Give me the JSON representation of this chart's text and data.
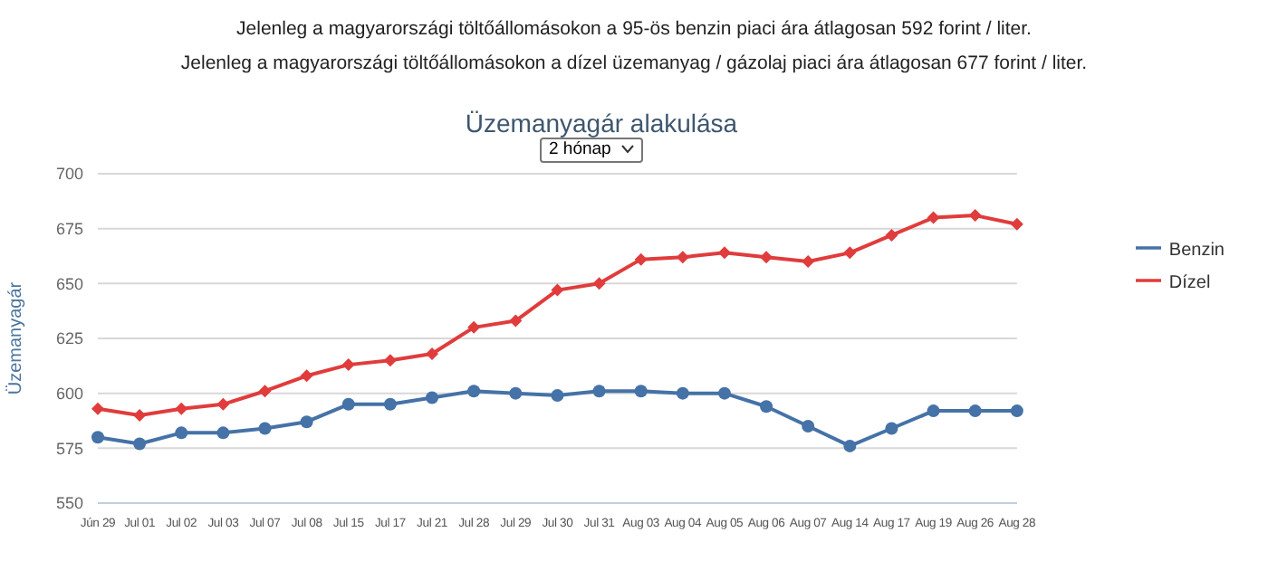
{
  "chart_data": {
    "type": "line",
    "title": "Üzemanyagár alakulása",
    "subtitle": "2 hónap",
    "ylabel": "Üzemanyagár",
    "annotations": [
      "Jelenleg a magyarországi töltőállomásokon a 95-ös benzin piaci ára átlagosan 592 forint / liter.",
      "Jelenleg a magyarországi töltőállomásokon a dízel üzemanyag / gázolaj piaci ára átlagosan 677 forint / liter."
    ],
    "categories": [
      "Jún 29",
      "Jul 01",
      "Jul 02",
      "Jul 03",
      "Jul 07",
      "Jul 08",
      "Jul 15",
      "Jul 17",
      "Jul 21",
      "Jul 28",
      "Jul 29",
      "Jul 30",
      "Jul 31",
      "Aug 03",
      "Aug 04",
      "Aug 05",
      "Aug 06",
      "Aug 07",
      "Aug 14",
      "Aug 17",
      "Aug 19",
      "Aug 26",
      "Aug 28"
    ],
    "series": [
      {
        "name": "Benzin",
        "color": "#4572a7",
        "marker": "circle",
        "values": [
          580,
          577,
          582,
          582,
          584,
          587,
          595,
          595,
          598,
          601,
          600,
          599,
          601,
          601,
          600,
          600,
          594,
          585,
          576,
          584,
          592,
          592,
          592
        ]
      },
      {
        "name": "Dízel",
        "color": "#e03c3c",
        "marker": "diamond",
        "values": [
          593,
          590,
          593,
          595,
          601,
          608,
          613,
          615,
          618,
          630,
          633,
          647,
          650,
          661,
          662,
          664,
          662,
          660,
          664,
          672,
          680,
          681,
          677
        ]
      }
    ],
    "ylim": [
      550,
      700
    ],
    "yticks": [
      550,
      575,
      600,
      625,
      650,
      675,
      700
    ],
    "grid": "y",
    "legend": "right"
  }
}
